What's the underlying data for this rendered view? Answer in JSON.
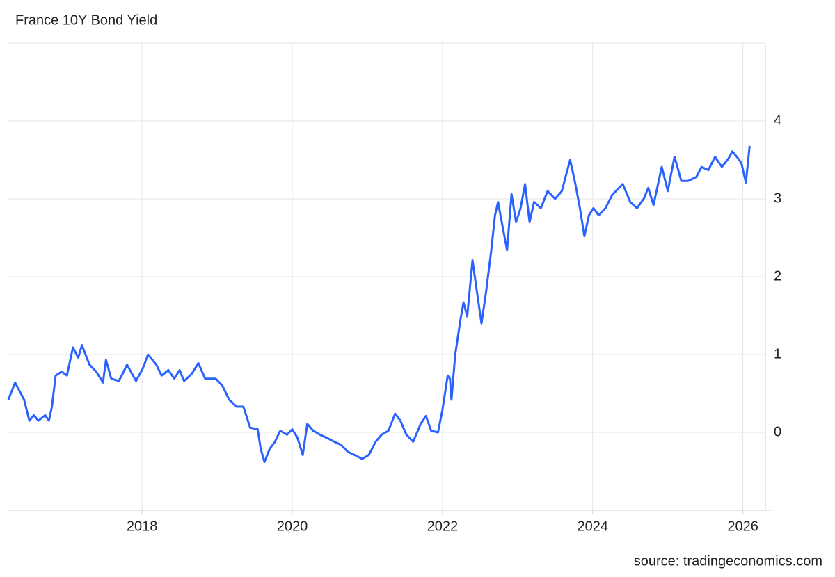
{
  "chart_data": {
    "type": "line",
    "title": "France 10Y Bond Yield",
    "source": "source: tradingeconomics.com",
    "x": [
      2016.22,
      2016.31,
      2016.43,
      2016.5,
      2016.56,
      2016.62,
      2016.71,
      2016.76,
      2016.8,
      2016.85,
      2016.93,
      2017.0,
      2017.08,
      2017.15,
      2017.2,
      2017.3,
      2017.39,
      2017.48,
      2017.52,
      2017.59,
      2017.69,
      2017.73,
      2017.8,
      2017.92,
      2018.01,
      2018.08,
      2018.19,
      2018.26,
      2018.35,
      2018.43,
      2018.5,
      2018.56,
      2018.66,
      2018.75,
      2018.84,
      2018.98,
      2019.07,
      2019.16,
      2019.26,
      2019.35,
      2019.44,
      2019.54,
      2019.58,
      2019.63,
      2019.7,
      2019.77,
      2019.84,
      2019.93,
      2020.0,
      2020.07,
      2020.14,
      2020.2,
      2020.28,
      2020.37,
      2020.46,
      2020.56,
      2020.65,
      2020.74,
      2020.83,
      2020.93,
      2021.02,
      2021.11,
      2021.19,
      2021.28,
      2021.37,
      2021.44,
      2021.52,
      2021.61,
      2021.71,
      2021.78,
      2021.85,
      2021.94,
      2022.0,
      2022.07,
      2022.1,
      2022.12,
      2022.17,
      2022.24,
      2022.28,
      2022.33,
      2022.4,
      2022.46,
      2022.52,
      2022.58,
      2022.65,
      2022.7,
      2022.74,
      2022.79,
      2022.86,
      2022.92,
      2022.98,
      2023.04,
      2023.1,
      2023.16,
      2023.22,
      2023.31,
      2023.4,
      2023.5,
      2023.59,
      2023.65,
      2023.7,
      2023.77,
      2023.83,
      2023.89,
      2023.95,
      2024.01,
      2024.08,
      2024.17,
      2024.26,
      2024.4,
      2024.5,
      2024.59,
      2024.68,
      2024.74,
      2024.81,
      2024.92,
      2025.0,
      2025.09,
      2025.18,
      2025.27,
      2025.38,
      2025.45,
      2025.54,
      2025.63,
      2025.72,
      2025.81,
      2025.86,
      2025.92,
      2025.98,
      2026.04,
      2026.09
    ],
    "series": [
      {
        "name": "France 10Y",
        "color": "#2962ff",
        "values": [
          0.42,
          0.64,
          0.42,
          0.15,
          0.22,
          0.15,
          0.22,
          0.15,
          0.33,
          0.73,
          0.78,
          0.73,
          1.09,
          0.96,
          1.12,
          0.87,
          0.78,
          0.64,
          0.93,
          0.69,
          0.66,
          0.73,
          0.87,
          0.66,
          0.82,
          1.0,
          0.87,
          0.73,
          0.8,
          0.69,
          0.8,
          0.66,
          0.75,
          0.89,
          0.69,
          0.69,
          0.6,
          0.42,
          0.33,
          0.33,
          0.06,
          0.04,
          -0.21,
          -0.38,
          -0.21,
          -0.12,
          0.02,
          -0.03,
          0.04,
          -0.07,
          -0.29,
          0.11,
          0.02,
          -0.03,
          -0.07,
          -0.12,
          -0.16,
          -0.25,
          -0.29,
          -0.34,
          -0.29,
          -0.12,
          -0.03,
          0.02,
          0.24,
          0.15,
          -0.03,
          -0.12,
          0.11,
          0.21,
          0.02,
          0.0,
          0.29,
          0.73,
          0.69,
          0.42,
          1.0,
          1.45,
          1.67,
          1.49,
          2.21,
          1.8,
          1.4,
          1.8,
          2.34,
          2.79,
          2.96,
          2.7,
          2.34,
          3.06,
          2.7,
          2.88,
          3.19,
          2.7,
          2.96,
          2.88,
          3.1,
          3.0,
          3.1,
          3.32,
          3.5,
          3.19,
          2.88,
          2.52,
          2.79,
          2.88,
          2.79,
          2.88,
          3.05,
          3.19,
          2.96,
          2.88,
          3.0,
          3.14,
          2.92,
          3.41,
          3.1,
          3.54,
          3.23,
          3.23,
          3.28,
          3.41,
          3.37,
          3.54,
          3.41,
          3.52,
          3.61,
          3.54,
          3.46,
          3.21,
          3.68
        ]
      }
    ],
    "xlim": [
      2016.22,
      2026.3
    ],
    "xticks": [
      2018,
      2020,
      2022,
      2024,
      2026
    ],
    "ylim": [
      -1,
      5
    ],
    "yticks": [
      0,
      1,
      2,
      3,
      4
    ],
    "grid": true
  }
}
